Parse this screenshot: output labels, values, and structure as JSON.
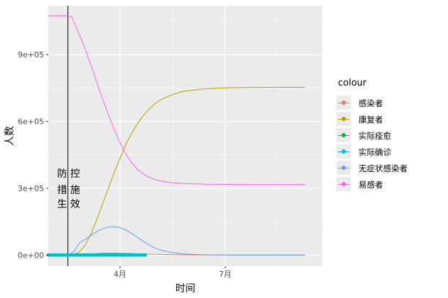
{
  "chart_data": {
    "type": "line",
    "xlabel": "时间",
    "ylabel": "人数",
    "x_ticks": [
      "4月",
      "7月"
    ],
    "y_ticks": [
      "0e+00",
      "3e+05",
      "6e+05",
      "9e+05"
    ],
    "ylim": [
      -50000,
      1120000
    ],
    "xlim_days": [
      -17,
      220
    ],
    "grid": true,
    "legend_title": "colour",
    "legend_position": "right",
    "annotation": {
      "text_lines": [
        "防 控",
        "措 施",
        "生 效"
      ],
      "vline_day": 0
    },
    "series": [
      {
        "name": "感染者",
        "color": "#F8766D",
        "style": "line",
        "points": [
          [
            0,
            0
          ],
          [
            5,
            500
          ],
          [
            10,
            2000
          ],
          [
            20,
            5500
          ],
          [
            30,
            8000
          ],
          [
            40,
            9000
          ],
          [
            50,
            8200
          ],
          [
            60,
            6000
          ],
          [
            75,
            3500
          ],
          [
            90,
            1800
          ],
          [
            110,
            700
          ],
          [
            140,
            200
          ],
          [
            170,
            80
          ],
          [
            205,
            30
          ]
        ]
      },
      {
        "name": "康复者",
        "color": "#B79F00",
        "style": "line",
        "points": [
          [
            0,
            0
          ],
          [
            5,
            2000
          ],
          [
            10,
            15000
          ],
          [
            15,
            45000
          ],
          [
            20,
            95000
          ],
          [
            25,
            160000
          ],
          [
            30,
            230000
          ],
          [
            35,
            300000
          ],
          [
            40,
            370000
          ],
          [
            45,
            435000
          ],
          [
            50,
            495000
          ],
          [
            55,
            545000
          ],
          [
            60,
            590000
          ],
          [
            65,
            625000
          ],
          [
            70,
            655000
          ],
          [
            75,
            678000
          ],
          [
            80,
            697000
          ],
          [
            90,
            720000
          ],
          [
            100,
            735000
          ],
          [
            115,
            745000
          ],
          [
            130,
            750000
          ],
          [
            150,
            752000
          ],
          [
            180,
            753000
          ],
          [
            205,
            753000
          ]
        ]
      },
      {
        "name": "实际痊愈",
        "color": "#00BA38",
        "style": "thick",
        "points": [
          [
            -17,
            0
          ],
          [
            67,
            0
          ]
        ]
      },
      {
        "name": "实际确诊",
        "color": "#00BFC4",
        "style": "thick",
        "points": [
          [
            -17,
            0
          ],
          [
            67,
            0
          ]
        ]
      },
      {
        "name": "无症状感染者",
        "color": "#619CFF",
        "style": "line",
        "points": [
          [
            0,
            0
          ],
          [
            5,
            15000
          ],
          [
            10,
            55000
          ],
          [
            15,
            70000
          ],
          [
            20,
            88000
          ],
          [
            25,
            105000
          ],
          [
            30,
            118000
          ],
          [
            35,
            126000
          ],
          [
            40,
            127000
          ],
          [
            45,
            123000
          ],
          [
            50,
            112000
          ],
          [
            55,
            98000
          ],
          [
            60,
            80000
          ],
          [
            65,
            62000
          ],
          [
            70,
            46000
          ],
          [
            75,
            33000
          ],
          [
            80,
            22000
          ],
          [
            90,
            11000
          ],
          [
            100,
            5000
          ],
          [
            115,
            1500
          ],
          [
            140,
            300
          ],
          [
            170,
            50
          ],
          [
            205,
            10
          ]
        ]
      },
      {
        "name": "易感者",
        "color": "#F564E3",
        "style": "line",
        "points": [
          [
            -17,
            1075000
          ],
          [
            0,
            1075000
          ],
          [
            3,
            1070000
          ],
          [
            5,
            1050000
          ],
          [
            8,
            1010000
          ],
          [
            12,
            965000
          ],
          [
            16,
            910000
          ],
          [
            20,
            850000
          ],
          [
            25,
            775000
          ],
          [
            30,
            700000
          ],
          [
            35,
            630000
          ],
          [
            40,
            565000
          ],
          [
            45,
            505000
          ],
          [
            50,
            455000
          ],
          [
            55,
            415000
          ],
          [
            60,
            385000
          ],
          [
            65,
            365000
          ],
          [
            70,
            350000
          ],
          [
            75,
            340000
          ],
          [
            80,
            333000
          ],
          [
            90,
            325000
          ],
          [
            100,
            321000
          ],
          [
            120,
            318000
          ],
          [
            150,
            317000
          ],
          [
            180,
            317000
          ],
          [
            205,
            317000
          ]
        ]
      }
    ]
  }
}
